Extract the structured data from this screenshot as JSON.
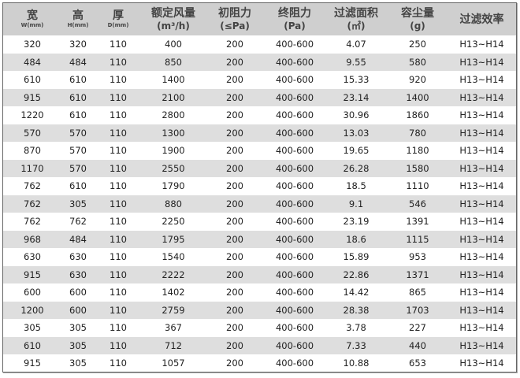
{
  "headers": [
    {
      "title": "宽",
      "sub": "W(mm)"
    },
    {
      "title": "高",
      "sub": "H(mm)"
    },
    {
      "title": "厚",
      "sub": "D(mm)"
    },
    {
      "title": "额定风量",
      "unit": "(m³/h)"
    },
    {
      "title": "初阻力",
      "unit": "(≤Pa)"
    },
    {
      "title": "终阻力",
      "unit": "(Pa)"
    },
    {
      "title": "过滤面积",
      "unit": "(㎡)"
    },
    {
      "title": "容尘量",
      "unit": "(g)"
    },
    {
      "title": "过滤效率"
    }
  ],
  "rows": [
    [
      "320",
      "320",
      "110",
      "400",
      "200",
      "400-600",
      "4.07",
      "250",
      "H13~H14"
    ],
    [
      "484",
      "484",
      "110",
      "850",
      "200",
      "400-600",
      "9.55",
      "580",
      "H13~H14"
    ],
    [
      "610",
      "610",
      "110",
      "1400",
      "200",
      "400-600",
      "15.33",
      "920",
      "H13~H14"
    ],
    [
      "915",
      "610",
      "110",
      "2100",
      "200",
      "400-600",
      "23.14",
      "1400",
      "H13~H14"
    ],
    [
      "1220",
      "610",
      "110",
      "2800",
      "200",
      "400-600",
      "30.96",
      "1860",
      "H13~H14"
    ],
    [
      "570",
      "570",
      "110",
      "1300",
      "200",
      "400-600",
      "13.03",
      "780",
      "H13~H14"
    ],
    [
      "870",
      "570",
      "110",
      "1900",
      "200",
      "400-600",
      "19.65",
      "1180",
      "H13~H14"
    ],
    [
      "1170",
      "570",
      "110",
      "2550",
      "200",
      "400-600",
      "26.28",
      "1580",
      "H13~H14"
    ],
    [
      "762",
      "610",
      "110",
      "1790",
      "200",
      "400-600",
      "18.5",
      "1110",
      "H13~H14"
    ],
    [
      "762",
      "305",
      "110",
      "880",
      "200",
      "400-600",
      "9.1",
      "546",
      "H13~H14"
    ],
    [
      "762",
      "762",
      "110",
      "2250",
      "200",
      "400-600",
      "23.19",
      "1391",
      "H13~H14"
    ],
    [
      "968",
      "484",
      "110",
      "1795",
      "200",
      "400-600",
      "18.6",
      "1115",
      "H13~H14"
    ],
    [
      "630",
      "630",
      "110",
      "1540",
      "200",
      "400-600",
      "15.89",
      "953",
      "H13~H14"
    ],
    [
      "915",
      "630",
      "110",
      "2222",
      "200",
      "400-600",
      "22.86",
      "1371",
      "H13~H14"
    ],
    [
      "600",
      "600",
      "110",
      "1402",
      "200",
      "400-600",
      "14.42",
      "865",
      "H13~H14"
    ],
    [
      "1200",
      "600",
      "110",
      "2759",
      "200",
      "400-600",
      "28.38",
      "1703",
      "H13~H14"
    ],
    [
      "305",
      "305",
      "110",
      "367",
      "200",
      "400-600",
      "3.78",
      "227",
      "H13~H14"
    ],
    [
      "610",
      "305",
      "110",
      "712",
      "200",
      "400-600",
      "7.33",
      "440",
      "H13~H14"
    ],
    [
      "915",
      "305",
      "110",
      "1057",
      "200",
      "400-600",
      "10.88",
      "653",
      "H13~H14"
    ]
  ]
}
